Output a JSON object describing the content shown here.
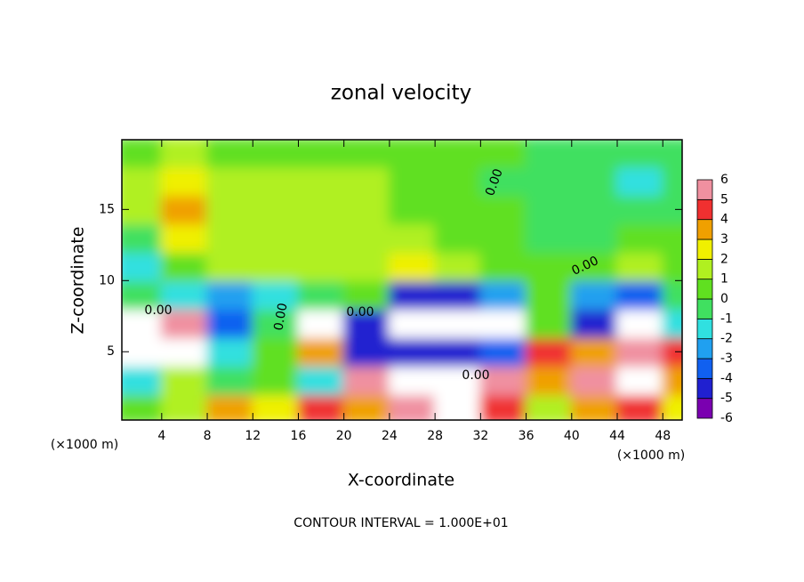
{
  "chart_data": {
    "type": "heatmap",
    "title": "zonal velocity",
    "xlabel": "X-coordinate",
    "ylabel": "Z-coordinate",
    "x_unit_label_left": "(×1000 m)",
    "x_unit_label_right": "(×1000 m)",
    "footer": "CONTOUR INTERVAL = 1.000E+01",
    "contour_labels": [
      "0.00",
      "0.00",
      "0.00",
      "0.00",
      "0.00",
      "0.00"
    ],
    "x": [
      2,
      6,
      10,
      14,
      18,
      22,
      26,
      30,
      34,
      38,
      42,
      46,
      50
    ],
    "z": [
      1,
      3,
      5,
      7,
      9,
      11,
      13,
      15,
      17,
      19
    ],
    "values": [
      [
        0,
        1,
        3,
        2,
        4,
        3,
        5,
        8,
        4,
        1,
        3,
        4,
        2
      ],
      [
        -2,
        1,
        -1,
        0,
        -2,
        5,
        7,
        7,
        5,
        3,
        5,
        7,
        3
      ],
      [
        8,
        8,
        -2,
        0,
        3,
        -5,
        -5,
        -5,
        -4,
        4,
        3,
        5,
        4
      ],
      [
        8,
        5,
        -4,
        -1,
        8,
        -5,
        -8,
        -8,
        -7,
        0,
        -5,
        -8,
        -2
      ],
      [
        -1,
        -2,
        -3,
        -2,
        -1,
        0,
        -5,
        -5,
        -3,
        0,
        -3,
        -4,
        -1
      ],
      [
        -2,
        0,
        1,
        1,
        1,
        1,
        2,
        1,
        0,
        0,
        0,
        1,
        0
      ],
      [
        -1,
        2,
        1,
        1,
        1,
        1,
        1,
        0,
        0,
        -1,
        -1,
        0,
        0
      ],
      [
        1,
        3,
        1,
        1,
        1,
        1,
        0,
        0,
        0,
        -1,
        -1,
        -1,
        -1
      ],
      [
        1,
        2,
        1,
        1,
        1,
        1,
        0,
        0,
        -1,
        -1,
        -1,
        -2,
        -1
      ],
      [
        0,
        1,
        0,
        0,
        0,
        0,
        0,
        0,
        0,
        -1,
        -1,
        -1,
        -1
      ]
    ],
    "xlim": [
      0.5,
      49.7
    ],
    "ylim": [
      0.2,
      19.9
    ],
    "xticks": [
      4,
      8,
      12,
      16,
      20,
      24,
      28,
      32,
      36,
      40,
      44,
      48
    ],
    "yticks": [
      5,
      10,
      15
    ],
    "cbar_ticks": [
      -6,
      -5,
      -4,
      -3,
      -2,
      -1,
      0,
      1,
      2,
      3,
      4,
      5,
      6
    ],
    "colors": [
      "#7a00b0",
      "#2020d0",
      "#1060f0",
      "#20a0f0",
      "#30e0e0",
      "#40e060",
      "#60e020",
      "#b0f020",
      "#f0f000",
      "#f0a000",
      "#f03030",
      "#f090a0"
    ],
    "out_of_range_color": "#ffffff"
  }
}
